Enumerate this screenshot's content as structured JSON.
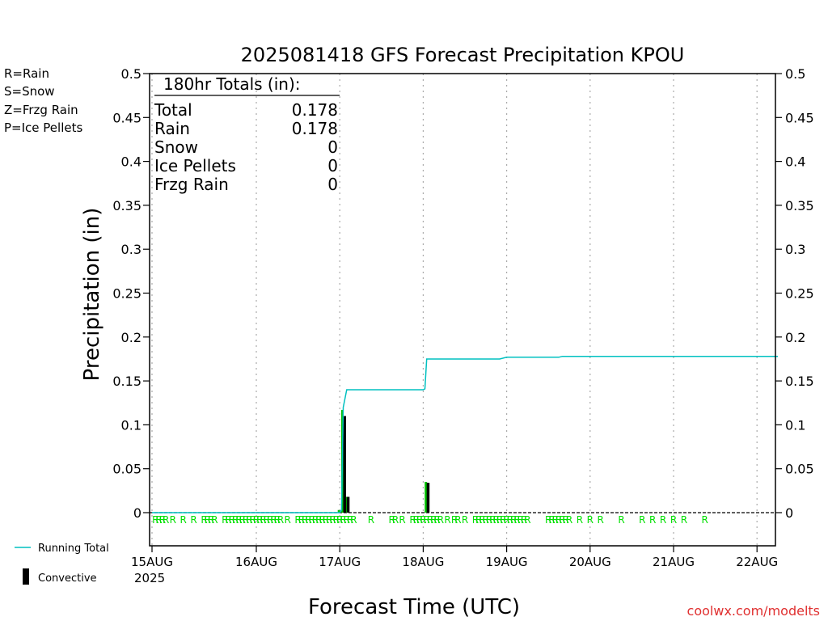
{
  "chart_data": {
    "type": "bar",
    "title": "2025081418 GFS Forecast Precipitation KPOU",
    "xlabel": "Forecast Time (UTC)",
    "ylabel": "Precipitation (in)",
    "ylim": [
      0,
      0.5
    ],
    "yticks": [
      "0",
      "0.05",
      "0.1",
      "0.15",
      "0.2",
      "0.25",
      "0.3",
      "0.35",
      "0.4",
      "0.45",
      "0.5"
    ],
    "x_range_hours": [
      0,
      180
    ],
    "x_ticks": [
      {
        "hour": 0,
        "label": "15AUG",
        "sublabel": "2025"
      },
      {
        "hour": 30,
        "label": "16AUG"
      },
      {
        "hour": 54,
        "label": "17AUG"
      },
      {
        "hour": 78,
        "label": "18AUG"
      },
      {
        "hour": 102,
        "label": "19AUG"
      },
      {
        "hour": 126,
        "label": "20AUG"
      },
      {
        "hour": 150,
        "label": "21AUG"
      },
      {
        "hour": 174,
        "label": "22AUG"
      }
    ],
    "grid": "vertical dotted at day boundaries",
    "series": [
      {
        "name": "Rain",
        "kind": "bar",
        "color": "#00c000",
        "points": [
          {
            "hour": 54,
            "value": 0.003
          },
          {
            "hour": 55,
            "value": 0.117
          },
          {
            "hour": 56,
            "value": 0.018
          },
          {
            "hour": 79,
            "value": 0.035
          }
        ]
      },
      {
        "name": "Convective",
        "kind": "bar",
        "color": "#000000",
        "points": [
          {
            "hour": 55,
            "value": 0.11
          },
          {
            "hour": 56,
            "value": 0.018
          },
          {
            "hour": 79,
            "value": 0.034
          }
        ]
      },
      {
        "name": "Running Total",
        "kind": "line",
        "color": "#00c0c0",
        "points": [
          {
            "hour": 0,
            "value": 0
          },
          {
            "hour": 54,
            "value": 0
          },
          {
            "hour": 54.5,
            "value": 0.003
          },
          {
            "hour": 55,
            "value": 0.12
          },
          {
            "hour": 56,
            "value": 0.14
          },
          {
            "hour": 78,
            "value": 0.14
          },
          {
            "hour": 78.5,
            "value": 0.141
          },
          {
            "hour": 79,
            "value": 0.175
          },
          {
            "hour": 100,
            "value": 0.175
          },
          {
            "hour": 102,
            "value": 0.177
          },
          {
            "hour": 117,
            "value": 0.177
          },
          {
            "hour": 118,
            "value": 0.178
          },
          {
            "hour": 180,
            "value": 0.178
          }
        ]
      }
    ],
    "ptype_strip": {
      "text": "R",
      "color": "#00e000",
      "hours": [
        1,
        2,
        3,
        4,
        6,
        9,
        12,
        15,
        16,
        17,
        18,
        21,
        22,
        23,
        24,
        25,
        26,
        27,
        28,
        29,
        30,
        31,
        32,
        33,
        34,
        35,
        36,
        37,
        39,
        42,
        43,
        44,
        45,
        46,
        47,
        48,
        49,
        50,
        51,
        52,
        53,
        54,
        55,
        56,
        57,
        58,
        63,
        69,
        70,
        72,
        75,
        76,
        77,
        78,
        79,
        80,
        81,
        82,
        83,
        85,
        87,
        88,
        90,
        93,
        94,
        95,
        96,
        97,
        98,
        99,
        100,
        101,
        102,
        103,
        104,
        105,
        106,
        107,
        108,
        114,
        115,
        116,
        117,
        118,
        119,
        120,
        123,
        126,
        129,
        135,
        141,
        144,
        147,
        150,
        153,
        159
      ]
    },
    "totals": {
      "heading": "180hr Totals (in):",
      "rows": [
        {
          "label": "Total",
          "value": "0.178"
        },
        {
          "label": "Rain",
          "value": "0.178"
        },
        {
          "label": "Snow",
          "value": "0"
        },
        {
          "label": "Ice Pellets",
          "value": "0"
        },
        {
          "label": "Frzg Rain",
          "value": "0"
        }
      ]
    }
  },
  "legend_ptype": [
    {
      "text": "R=Rain",
      "color": "#00c000"
    },
    {
      "text": "S=Snow",
      "color": "#3050e0"
    },
    {
      "text": "Z=Frzg Rain",
      "color": "#f08020"
    },
    {
      "text": "P=Ice Pellets",
      "color": "#e02080"
    }
  ],
  "legend_bottom": {
    "running_total": "Running Total",
    "running_total_color": "#00c0c0",
    "convective": "Convective"
  },
  "credit": "coolwx.com/modelts",
  "credit_color": "#e03030"
}
